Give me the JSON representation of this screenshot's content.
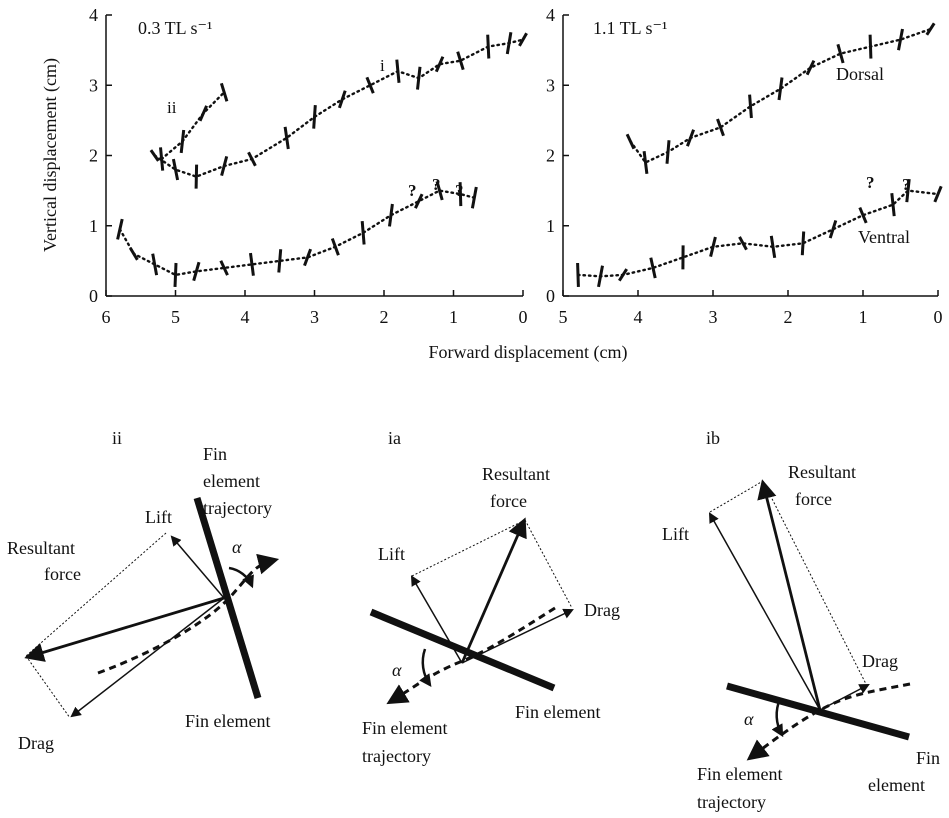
{
  "chart_data": [
    {
      "type": "scatter",
      "panel_label": "0.3 TL s⁻¹",
      "ylabel": "Vertical displacement (cm)",
      "xlim": [
        6,
        0
      ],
      "ylim": [
        0,
        4
      ],
      "x_ticks": [
        "6",
        "5",
        "4",
        "3",
        "2",
        "1",
        "0"
      ],
      "y_ticks": [
        "0",
        "1",
        "2",
        "3",
        "4"
      ],
      "series": [
        {
          "name": "i",
          "x": [
            5.3,
            5.0,
            4.7,
            4.3,
            3.9,
            3.4,
            3.0,
            2.6,
            2.2,
            1.8,
            1.5,
            1.2,
            0.9,
            0.5,
            0.2,
            0.0
          ],
          "y": [
            2.0,
            1.8,
            1.7,
            1.85,
            1.95,
            2.25,
            2.55,
            2.8,
            3.0,
            3.2,
            3.1,
            3.3,
            3.35,
            3.55,
            3.6,
            3.65
          ]
        },
        {
          "name": "ii",
          "x": [
            5.2,
            4.9,
            4.6,
            4.3
          ],
          "y": [
            1.95,
            2.2,
            2.6,
            2.9
          ]
        },
        {
          "name": "",
          "x": [
            5.8,
            5.6,
            5.3,
            5.0,
            4.7,
            4.3,
            3.9,
            3.5,
            3.1,
            2.7,
            2.3,
            1.9,
            1.5,
            1.2,
            0.9,
            0.7
          ],
          "y": [
            0.95,
            0.6,
            0.45,
            0.3,
            0.35,
            0.4,
            0.45,
            0.5,
            0.55,
            0.7,
            0.9,
            1.15,
            1.35,
            1.5,
            1.45,
            1.4
          ]
        }
      ],
      "labels": [
        "i",
        "ii",
        "?",
        "?",
        "?"
      ]
    },
    {
      "type": "scatter",
      "panel_label": "1.1 TL s⁻¹",
      "xlim": [
        5,
        0
      ],
      "ylim": [
        0,
        4
      ],
      "x_ticks": [
        "5",
        "4",
        "3",
        "2",
        "1",
        "0"
      ],
      "y_ticks": [
        "0",
        "1",
        "2",
        "3",
        "4"
      ],
      "series": [
        {
          "name": "Dorsal",
          "x": [
            4.1,
            3.9,
            3.6,
            3.3,
            2.9,
            2.5,
            2.1,
            1.7,
            1.3,
            0.9,
            0.5,
            0.1
          ],
          "y": [
            2.2,
            1.9,
            2.05,
            2.25,
            2.4,
            2.7,
            2.95,
            3.25,
            3.45,
            3.55,
            3.65,
            3.8
          ]
        },
        {
          "name": "Ventral",
          "x": [
            4.8,
            4.5,
            4.2,
            3.8,
            3.4,
            3.0,
            2.6,
            2.2,
            1.8,
            1.4,
            1.0,
            0.6,
            0.4,
            0.0
          ],
          "y": [
            0.3,
            0.28,
            0.3,
            0.4,
            0.55,
            0.7,
            0.75,
            0.7,
            0.75,
            0.95,
            1.15,
            1.3,
            1.5,
            1.45
          ]
        }
      ],
      "labels": [
        "Dorsal",
        "Ventral",
        "?",
        "?"
      ]
    }
  ],
  "shared": {
    "xlabel": "Forward displacement (cm)"
  },
  "diagrams": {
    "ii": {
      "label": "ii",
      "lift": "Lift",
      "resultant_line1": "Resultant",
      "resultant_line2": "force",
      "traj_line1": "Fin",
      "traj_line2": "element",
      "traj_line3": "trajectory",
      "alpha": "α",
      "drag": "Drag",
      "fin": "Fin element"
    },
    "ia": {
      "label": "ia",
      "resultant_line1": "Resultant",
      "resultant_line2": "force",
      "lift": "Lift",
      "drag": "Drag",
      "alpha": "α",
      "fin": "Fin element",
      "traj_line1": "Fin element",
      "traj_line2": "trajectory"
    },
    "ib": {
      "label": "ib",
      "resultant_line1": "Resultant",
      "resultant_line2": "force",
      "lift": "Lift",
      "drag": "Drag",
      "alpha": "α",
      "fin_line1": "Fin",
      "fin_line2": "element",
      "traj_line1": "Fin element",
      "traj_line2": "trajectory"
    }
  }
}
